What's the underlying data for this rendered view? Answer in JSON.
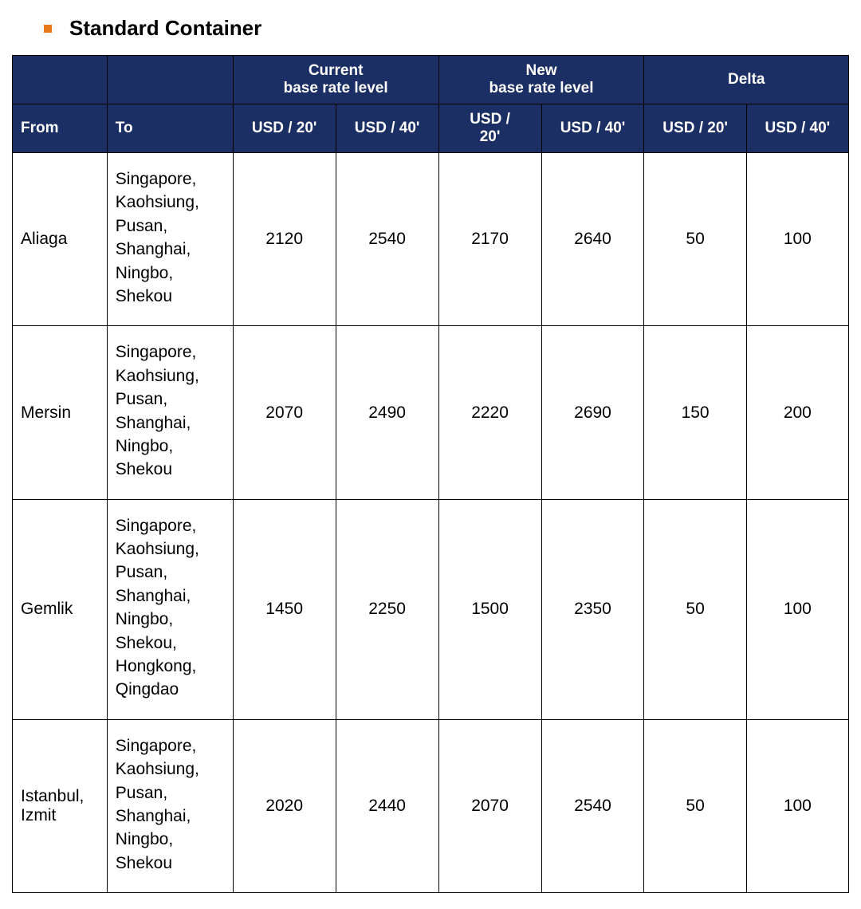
{
  "title": "Standard Container",
  "bullet_color": "#e67817",
  "header_bg": "#1c2f64",
  "header_text_color": "#ffffff",
  "border_color": "#000000",
  "body_text_color": "#000000",
  "table": {
    "group_headers": {
      "current": "Current\nbase rate level",
      "new": "New\nbase rate level",
      "delta": "Delta"
    },
    "columns": {
      "from": "From",
      "to": "To",
      "usd20": "USD / 20'",
      "usd40": "USD / 40'",
      "usd20_split": "USD / 20'",
      "usd40_2": "USD / 40'",
      "usd20_3": "USD / 20'",
      "usd40_3": "USD / 40'"
    },
    "rows": [
      {
        "from": "Aliaga",
        "to": "Singapore, Kaohsiung, Pusan, Shanghai, Ningbo, Shekou",
        "current_20": "2120",
        "current_40": "2540",
        "new_20": "2170",
        "new_40": "2640",
        "delta_20": "50",
        "delta_40": "100"
      },
      {
        "from": "Mersin",
        "to": "Singapore, Kaohsiung, Pusan, Shanghai, Ningbo, Shekou",
        "current_20": "2070",
        "current_40": "2490",
        "new_20": "2220",
        "new_40": "2690",
        "delta_20": "150",
        "delta_40": "200"
      },
      {
        "from": "Gemlik",
        "to": "Singapore, Kaohsiung, Pusan, Shanghai, Ningbo, Shekou, Hongkong, Qingdao",
        "current_20": "1450",
        "current_40": "2250",
        "new_20": "1500",
        "new_40": "2350",
        "delta_20": "50",
        "delta_40": "100"
      },
      {
        "from": "Istanbul, Izmit",
        "to": "Singapore, Kaohsiung, Pusan, Shanghai, Ningbo, Shekou",
        "current_20": "2020",
        "current_40": "2440",
        "new_20": "2070",
        "new_40": "2540",
        "delta_20": "50",
        "delta_40": "100"
      }
    ]
  }
}
